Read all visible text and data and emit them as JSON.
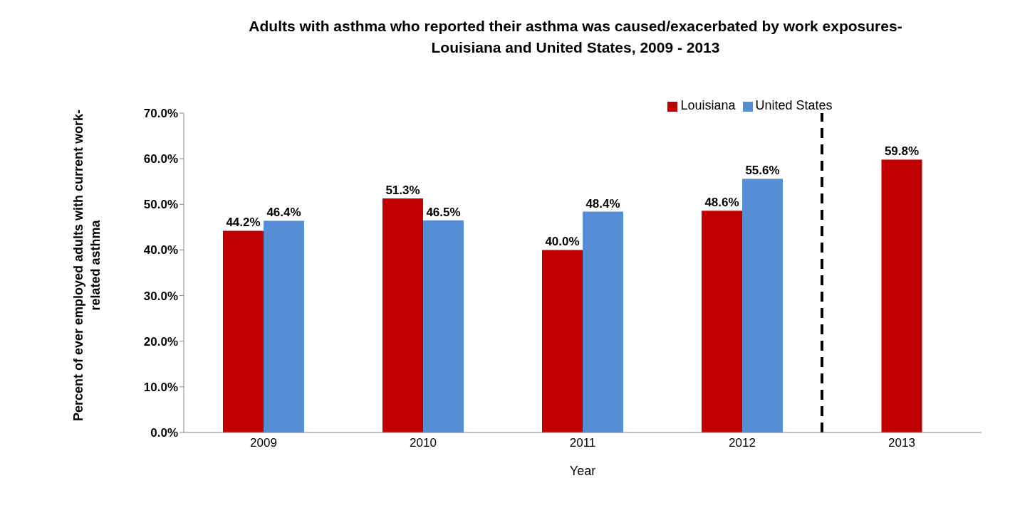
{
  "chart_data": {
    "type": "bar",
    "title": "Adults with asthma who reported their asthma was caused/exacerbated by work exposures-Louisiana and United States, 2009 - 2013",
    "xlabel": "Year",
    "ylabel": "Percent of ever employed adults with current work-related asthma",
    "x": [
      2009,
      2010,
      2011,
      2012,
      2013
    ],
    "xlim": [
      2008.5,
      2013.5
    ],
    "xticks": [
      2009,
      2010,
      2011,
      2012,
      2013
    ],
    "series": [
      {
        "name": "Louisiana",
        "color": "#c00000",
        "values": [
          44.2,
          51.3,
          40.0,
          48.6,
          59.8
        ],
        "value_labels": [
          "44.2%",
          "51.3%",
          "40.0%",
          "48.6%",
          "59.8%"
        ]
      },
      {
        "name": "United States",
        "color": "#558ed5",
        "values": [
          46.4,
          46.5,
          48.4,
          55.6,
          null
        ],
        "value_labels": [
          "46.4%",
          "46.5%",
          "48.4%",
          "55.6%",
          null
        ]
      }
    ],
    "ylim": [
      0,
      70
    ],
    "yticks": [
      {
        "value": 0,
        "label": "0.0%"
      },
      {
        "value": 10,
        "label": "10.0%"
      },
      {
        "value": 20,
        "label": "20.0%"
      },
      {
        "value": 30,
        "label": "30.0%"
      },
      {
        "value": 40,
        "label": "40.0%"
      },
      {
        "value": 50,
        "label": "50.0%"
      },
      {
        "value": 60,
        "label": "60.0%"
      },
      {
        "value": 70,
        "label": "70.0%"
      }
    ],
    "ref_lines": [
      {
        "axis": "x",
        "value": 2012.5,
        "color": "#000000",
        "line_style": "dashed"
      }
    ],
    "grid": false,
    "legend": "top"
  }
}
